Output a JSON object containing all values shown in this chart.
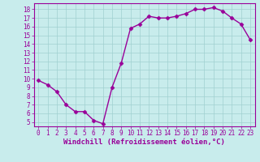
{
  "x": [
    0,
    1,
    2,
    3,
    4,
    5,
    6,
    7,
    8,
    9,
    10,
    11,
    12,
    13,
    14,
    15,
    16,
    17,
    18,
    19,
    20,
    21,
    22,
    23
  ],
  "y": [
    9.8,
    9.3,
    8.5,
    7.0,
    6.2,
    6.2,
    5.2,
    4.8,
    9.0,
    11.8,
    15.8,
    16.3,
    17.2,
    17.0,
    17.0,
    17.2,
    17.5,
    18.0,
    18.0,
    18.2,
    17.8,
    17.0,
    16.3,
    14.5
  ],
  "line_color": "#990099",
  "marker": "D",
  "markersize": 2.5,
  "linewidth": 1.0,
  "background_color": "#c8ecec",
  "grid_color": "#a0d0d0",
  "xlabel": "Windchill (Refroidissement éolien,°C)",
  "xlabel_color": "#990099",
  "ylim": [
    4.5,
    18.7
  ],
  "xlim": [
    -0.5,
    23.5
  ],
  "yticks": [
    5,
    6,
    7,
    8,
    9,
    10,
    11,
    12,
    13,
    14,
    15,
    16,
    17,
    18
  ],
  "xticks": [
    0,
    1,
    2,
    3,
    4,
    5,
    6,
    7,
    8,
    9,
    10,
    11,
    12,
    13,
    14,
    15,
    16,
    17,
    18,
    19,
    20,
    21,
    22,
    23
  ],
  "tick_color": "#990099",
  "spine_color": "#990099",
  "tick_labelsize": 5.5,
  "xlabel_fontsize": 6.5
}
